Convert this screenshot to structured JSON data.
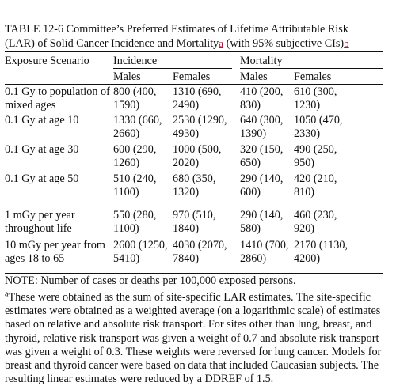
{
  "caption": {
    "line1": "TABLE 12-6 Committee’s Preferred Estimates of Lifetime Attributable Risk",
    "line2_prefix": "(LAR) of Solid Cancer Incidence and Mortality",
    "fn_a": "a",
    "line2_mid": " (with 95% subjective CIs)",
    "fn_b": "b"
  },
  "header": {
    "scenario": "Exposure Scenario",
    "incidence": "Incidence",
    "mortality": "Mortality",
    "males": "Males",
    "females": "Females"
  },
  "rows": [
    {
      "s": [
        "0.1 Gy to population of",
        "mixed ages"
      ],
      "im": [
        "800 (400,",
        "1590)"
      ],
      "if": [
        "1310 (690,",
        "2490)"
      ],
      "mm": [
        "410 (200,",
        "830)"
      ],
      "mf": [
        "610 (300,",
        "1230)"
      ]
    },
    {
      "s": [
        "0.1 Gy at age 10",
        ""
      ],
      "im": [
        "1330 (660,",
        "2660)"
      ],
      "if": [
        "2530 (1290,",
        "4930)"
      ],
      "mm": [
        "640 (300,",
        "1390)"
      ],
      "mf": [
        "1050 (470,",
        "2330)"
      ]
    },
    {
      "s": [
        "0.1 Gy at age 30",
        ""
      ],
      "im": [
        "600 (290,",
        "1260)"
      ],
      "if": [
        "1000 (500,",
        "2020)"
      ],
      "mm": [
        "320 (150,",
        "650)"
      ],
      "mf": [
        "490 (250,",
        "950)"
      ]
    },
    {
      "s": [
        "0.1 Gy at age 50",
        ""
      ],
      "im": [
        "510 (240,",
        "1100)"
      ],
      "if": [
        "680 (350,",
        "1320)"
      ],
      "mm": [
        "290 (140,",
        "600)"
      ],
      "mf": [
        "420 (210,",
        "810)"
      ]
    },
    {
      "s": [
        "1 mGy per year",
        "throughout life"
      ],
      "im": [
        "550 (280,",
        "1100)"
      ],
      "if": [
        "970 (510,",
        "1840)"
      ],
      "mm": [
        "290 (140,",
        "580)"
      ],
      "mf": [
        "460 (230,",
        "920)"
      ]
    },
    {
      "s": [
        "10 mGy per year from",
        "ages 18 to 65"
      ],
      "im": [
        "2600 (1250,",
        "5410)"
      ],
      "if": [
        "4030 (2070,",
        "7840)"
      ],
      "mm": [
        "1410 (700,",
        "2860)"
      ],
      "mf": [
        "2170 (1130,",
        "4200)"
      ]
    }
  ],
  "note": "NOTE: Number of cases or deaths per 100,000 exposed persons.",
  "footnote": {
    "marker": "a",
    "text": "These were obtained as the sum of site-specific LAR estimates. The site-specific estimates were obtained as a weighted average (on a logarithmic scale) of estimates based on relative and absolute risk transport. For sites other than lung, breast, and thyroid, relative risk transport was given a weight of 0.7 and absolute risk transport was given a weight of 0.3. These weights were reversed for lung cancer. Models for breast and thyroid cancer were based on data that included Caucasian subjects. The resulting linear estimates were reduced by a DDREF of 1.5."
  }
}
